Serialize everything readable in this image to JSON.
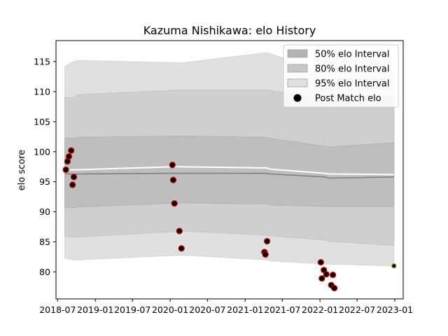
{
  "chart_data": {
    "type": "line",
    "title": "Kazuma Nishikawa: elo History",
    "xlabel": "",
    "ylabel": "elo score",
    "xlim": [
      "2018-06-23",
      "2023-02-11"
    ],
    "ylim": [
      75.5,
      118.5
    ],
    "x_ticks": [
      "2018-07",
      "2019-01",
      "2019-07",
      "2020-01",
      "2020-07",
      "2021-01",
      "2021-07",
      "2022-01",
      "2022-07",
      "2023-01"
    ],
    "y_ticks": [
      80,
      85,
      90,
      95,
      100,
      105,
      110,
      115
    ],
    "grid": false,
    "legend_position": "top-right",
    "legend": [
      {
        "label": "50% elo Interval",
        "kind": "patch",
        "color": "#b3b3b3"
      },
      {
        "label": "80% elo Interval",
        "kind": "patch",
        "color": "#c7c7c7"
      },
      {
        "label": "95% elo Interval",
        "kind": "patch",
        "color": "#e0e0e0"
      },
      {
        "label": "Post Match elo",
        "kind": "marker",
        "color": "#000000"
      }
    ],
    "band_x": [
      "2018-08-05",
      "2018-09-15",
      "2018-10-10",
      "2020-03-01",
      "2021-04-15",
      "2021-05-05",
      "2022-01-25",
      "2022-02-15",
      "2022-12-28"
    ],
    "bands": {
      "ci95": {
        "upper": [
          114.2,
          115.0,
          115.2,
          114.8,
          116.5,
          116.3,
          113.2,
          113.0,
          113.0
        ],
        "lower": [
          82.3,
          82.0,
          82.0,
          82.8,
          82.0,
          81.8,
          81.3,
          81.3,
          81.0
        ]
      },
      "ci80": {
        "upper": [
          109.0,
          109.0,
          109.5,
          110.3,
          110.3,
          110.2,
          108.8,
          108.5,
          109.5
        ],
        "lower": [
          85.9,
          85.8,
          85.8,
          86.8,
          86.1,
          86.0,
          85.3,
          85.1,
          84.4
        ]
      },
      "ci50": {
        "upper": [
          102.3,
          102.2,
          102.4,
          102.6,
          102.4,
          102.2,
          100.9,
          100.8,
          101.5
        ],
        "lower": [
          90.7,
          90.7,
          90.8,
          91.5,
          91.3,
          91.1,
          90.9,
          90.9,
          90.9
        ]
      }
    },
    "series": [
      {
        "key": "mean",
        "color": "#ffffff",
        "x": [
          "2018-08-05",
          "2018-09-15",
          "2018-10-10",
          "2020-01-15",
          "2021-04-15",
          "2021-05-05",
          "2022-01-25",
          "2022-02-15",
          "2022-12-28"
        ],
        "values": [
          96.9,
          97.0,
          97.0,
          97.5,
          97.3,
          97.1,
          96.4,
          96.3,
          96.2
        ]
      },
      {
        "key": "median",
        "color": "#808080",
        "x": [
          "2018-08-05",
          "2018-09-15",
          "2018-10-10",
          "2020-01-15",
          "2021-04-15",
          "2021-05-05",
          "2022-01-25",
          "2022-02-15",
          "2022-12-28"
        ],
        "values": [
          96.3,
          96.3,
          96.3,
          96.4,
          96.4,
          96.3,
          95.8,
          95.6,
          95.8
        ]
      }
    ],
    "points": {
      "name": "Post Match elo",
      "fill": "#000000",
      "edge": "#cc0000",
      "x": [
        "2018-08-10",
        "2018-08-18",
        "2018-08-25",
        "2018-09-05",
        "2018-09-12",
        "2018-09-18",
        "2020-01-12",
        "2020-01-16",
        "2020-01-22",
        "2020-02-15",
        "2020-02-25",
        "2021-04-05",
        "2021-04-10",
        "2021-04-18",
        "2022-01-05",
        "2022-01-10",
        "2022-01-20",
        "2022-02-01",
        "2022-02-25",
        "2022-03-05",
        "2022-03-12"
      ],
      "values": [
        97.0,
        98.4,
        99.2,
        100.2,
        94.5,
        95.8,
        97.8,
        95.3,
        91.4,
        86.8,
        83.9,
        83.3,
        82.9,
        85.1,
        81.6,
        78.9,
        80.3,
        79.6,
        77.8,
        79.5,
        77.3
      ]
    },
    "last_point": {
      "x": "2022-12-28",
      "value": 81.0,
      "fill": "#00008b",
      "edge": "#cccc00"
    }
  }
}
